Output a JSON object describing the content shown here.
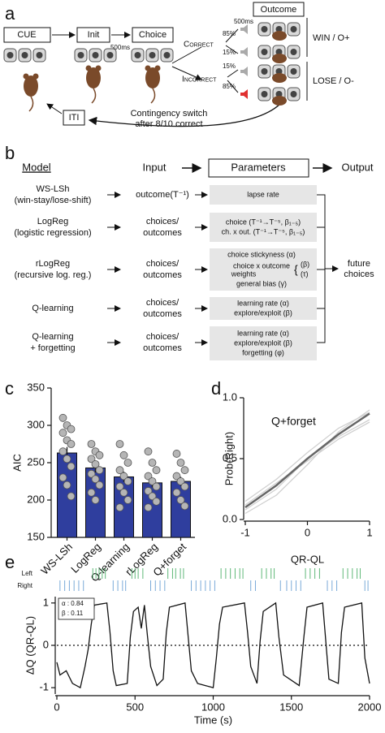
{
  "panel_a": {
    "label": "a",
    "steps": [
      "CUE",
      "Init",
      "Choice"
    ],
    "delay": "500ms",
    "outcome_title": "Outcome",
    "correct": "Correct",
    "incorrect": "Incorrect",
    "outcome_delay": "500ms",
    "probs": [
      "85%",
      "15%",
      "15%",
      "85%"
    ],
    "win": "WIN / O+",
    "lose": "LOSE / O-",
    "iti": "ITI",
    "switch": [
      "Contingency switch",
      "after 8/10 correct"
    ]
  },
  "panel_b": {
    "label": "b",
    "headers": [
      "Model",
      "Input",
      "Parameters",
      "Output"
    ],
    "rows": [
      {
        "model": [
          "WS-LSh",
          "(win-stay/lose-shift)"
        ],
        "input": [
          "outcome(T⁻¹)"
        ],
        "params": [
          "lapse rate"
        ]
      },
      {
        "model": [
          "LogReg",
          "(logistic regression)"
        ],
        "input": [
          "choices/",
          "outcomes"
        ],
        "params": [
          "choice (T⁻¹→T⁻⁵, β₁₋₅)",
          "ch. x out. (T⁻¹→T⁻⁵, β₁₋₅)"
        ]
      },
      {
        "model": [
          "rLogReg",
          "(recursive log. reg.)"
        ],
        "input": [
          "choices/",
          "outcomes"
        ],
        "params": [
          "choice stickyness (α)",
          "choice x outcome",
          "weights",
          "general bias (γ)",
          "{",
          "(β)",
          "(τ)"
        ]
      },
      {
        "model": [
          "Q-learning"
        ],
        "input": [
          "choices/",
          "outcomes"
        ],
        "params": [
          "learning rate (α)",
          "explore/exploit (β)"
        ]
      },
      {
        "model": [
          "Q-learning",
          "+ forgetting"
        ],
        "input": [
          "choices/",
          "outcomes"
        ],
        "params": [
          "learning rate (α)",
          "explore/exploit (β)",
          "forgetting (φ)"
        ]
      }
    ],
    "output": [
      "future",
      "choices"
    ]
  },
  "chart_data": [
    {
      "type": "bar",
      "label": "c",
      "ylabel": "AIC",
      "categories": [
        "WS-LSh",
        "LogReg",
        "Q-learning",
        "rLogReg",
        "Q+forget"
      ],
      "values": [
        263,
        243,
        231,
        223,
        225
      ],
      "errors": [
        8,
        6,
        7,
        6,
        6
      ],
      "points": [
        [
          310,
          300,
          295,
          290,
          280,
          275,
          265,
          255,
          245,
          230,
          220,
          205
        ],
        [
          275,
          265,
          260,
          255,
          248,
          240,
          235,
          228,
          220,
          210,
          200
        ],
        [
          275,
          260,
          250,
          240,
          232,
          225,
          218,
          210,
          200,
          190
        ],
        [
          265,
          250,
          240,
          232,
          225,
          218,
          212,
          205,
          198,
          190
        ],
        [
          262,
          250,
          240,
          232,
          225,
          218,
          210,
          200,
          192
        ]
      ],
      "color": "#2f3e9e",
      "point_color": "#b5b5b5",
      "ylim": [
        150,
        350
      ],
      "yticks": [
        150,
        200,
        250,
        300,
        350
      ]
    },
    {
      "type": "line",
      "label": "d",
      "title": "Q+forget",
      "xlabel": "QR-QL",
      "ylabel": "Prob(Right)",
      "x": [
        -1,
        -0.5,
        0,
        0.5,
        1
      ],
      "series": [
        {
          "color": "#d0d0d0",
          "values": [
            0.05,
            0.2,
            0.45,
            0.72,
            0.9
          ]
        },
        {
          "color": "#d0d0d0",
          "values": [
            0.15,
            0.33,
            0.55,
            0.75,
            0.88
          ]
        },
        {
          "color": "#d0d0d0",
          "values": [
            0.08,
            0.25,
            0.5,
            0.68,
            0.82
          ]
        },
        {
          "color": "#d0d0d0",
          "values": [
            0.12,
            0.3,
            0.48,
            0.66,
            0.8
          ]
        },
        {
          "color": "#666666",
          "values": [
            0.1,
            0.28,
            0.5,
            0.7,
            0.87
          ]
        }
      ],
      "xlim": [
        -1,
        1
      ],
      "xticks": [
        -1,
        0,
        1
      ],
      "ylim": [
        0,
        1
      ],
      "yticks": [
        {
          "value": 0,
          "label": "0.0"
        },
        {
          "value": 0.5,
          "label": "0.5"
        },
        {
          "value": 1,
          "label": "1.0"
        }
      ]
    },
    {
      "type": "line",
      "label": "e",
      "xlabel": "Time (s)",
      "ylabel": "ΔQ (QR-QL)",
      "x": [
        0,
        20,
        60,
        100,
        150,
        180,
        200,
        220,
        240,
        320,
        340,
        360,
        380,
        450,
        470,
        490,
        520,
        540,
        560,
        580,
        600,
        640,
        680,
        700,
        720,
        820,
        840,
        860,
        900,
        1000,
        1020,
        1040,
        1060,
        1200,
        1220,
        1240,
        1280,
        1300,
        1320,
        1400,
        1420,
        1450,
        1550,
        1580,
        1600,
        1700,
        1720,
        1740,
        1800,
        1820,
        1840,
        1950,
        1970,
        2000
      ],
      "values": [
        -0.4,
        -0.7,
        -0.6,
        -0.9,
        -1,
        -0.5,
        -0.1,
        0.5,
        0.95,
        1,
        0.3,
        -0.6,
        -0.95,
        -0.9,
        0.2,
        0.8,
        0.9,
        0.4,
        0.95,
        0.2,
        -0.5,
        -0.95,
        -0.8,
        0.3,
        0.9,
        1,
        0.2,
        -0.6,
        -0.9,
        -1,
        -0.3,
        0.5,
        0.9,
        1,
        0.3,
        -0.5,
        -0.9,
        0.1,
        0.8,
        1,
        0.2,
        -0.7,
        -0.95,
        0.2,
        0.9,
        1,
        0.1,
        -0.8,
        -0.9,
        0.3,
        0.9,
        1,
        -0.3,
        -0.9
      ],
      "color": "#111111",
      "xlim": [
        0,
        2000
      ],
      "xticks": [
        0,
        500,
        1000,
        1500,
        2000
      ],
      "ylim": [
        -1.15,
        1.15
      ],
      "yticks": [
        -1,
        0,
        1
      ],
      "zero_line": true,
      "raster": {
        "labels": [
          "Left",
          "Right"
        ],
        "colors": [
          "#5fb878",
          "#7aaad8"
        ],
        "times": [
          [
            230,
            250,
            270,
            290,
            310,
            480,
            500,
            520,
            550,
            710,
            740,
            760,
            790,
            810,
            1050,
            1080,
            1110,
            1140,
            1170,
            1190,
            1310,
            1340,
            1370,
            1390,
            1590,
            1620,
            1650,
            1680,
            1830,
            1860,
            1890,
            1920,
            1940
          ],
          [
            20,
            50,
            80,
            110,
            140,
            170,
            360,
            390,
            420,
            440,
            600,
            630,
            660,
            690,
            860,
            890,
            920,
            950,
            980,
            1010,
            1240,
            1270,
            1430,
            1470,
            1500,
            1530,
            1560,
            1730,
            1760,
            1790,
            1970,
            1990
          ]
        ]
      },
      "annotation": [
        "α : 0.84",
        "β : 0.11"
      ]
    }
  ]
}
